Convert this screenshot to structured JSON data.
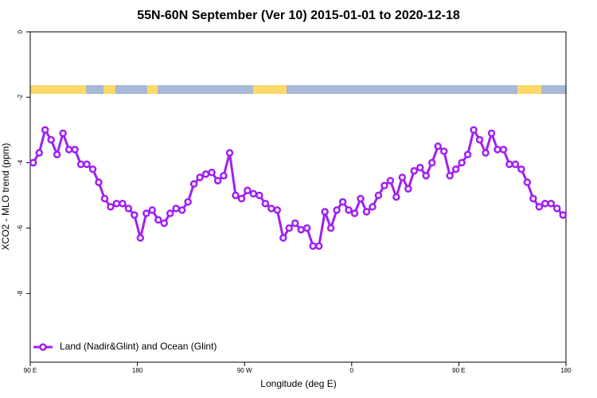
{
  "chart_data": {
    "type": "line",
    "title": "55N-60N September (Ver 10)   2015-01-01 to 2020-12-18",
    "x_label": "Longitude (deg E)",
    "y_label": "XCO2 - MLO trend (ppm)",
    "xlim": [
      90,
      540
    ],
    "ylim": [
      -10.1,
      0
    ],
    "xticks": [
      {
        "value": 90,
        "label": "90 E"
      },
      {
        "value": 180,
        "label": "180"
      },
      {
        "value": 270,
        "label": "90 W"
      },
      {
        "value": 360,
        "label": "0"
      },
      {
        "value": 450,
        "label": "90 E"
      },
      {
        "value": 540,
        "label": "180"
      }
    ],
    "yticks": [
      0,
      -2,
      -4,
      -6,
      -8
    ],
    "legend": "bottomleft",
    "x": [
      92.5,
      97.5,
      102.5,
      107.5,
      112.5,
      117.5,
      122.5,
      127.5,
      132.5,
      137.5,
      142.5,
      147.5,
      152.5,
      157.5,
      162.5,
      167.5,
      172.5,
      177.5,
      182.5,
      187.5,
      192.5,
      197.5,
      202.5,
      207.5,
      212.5,
      217.5,
      222.5,
      227.5,
      232.5,
      237.5,
      242.5,
      247.5,
      252.5,
      257.5,
      262.5,
      267.5,
      272.5,
      277.5,
      282.5,
      287.5,
      292.5,
      297.5,
      302.5,
      307.5,
      312.5,
      317.5,
      322.5,
      327.5,
      332.5,
      337.5,
      342.5,
      347.5,
      352.5,
      357.5,
      362.5,
      367.5,
      372.5,
      377.5,
      382.5,
      387.5,
      392.5,
      397.5,
      402.5,
      407.5,
      412.5,
      417.5,
      422.5,
      427.5,
      432.5,
      437.5,
      442.5,
      447.5,
      452.5,
      457.5,
      462.5,
      467.5,
      472.5,
      477.5,
      482.5,
      487.5,
      492.5,
      497.5,
      502.5,
      507.5,
      512.5,
      517.5,
      522.5,
      527.5,
      532.5,
      537.5
    ],
    "series": [
      {
        "name": "Land (Nadir&Glint) and Ocean (Glint)",
        "color": "#a020f0",
        "values": [
          -4.0,
          -3.7,
          -3.0,
          -3.3,
          -3.75,
          -3.1,
          -3.6,
          -3.6,
          -4.05,
          -4.05,
          -4.2,
          -4.6,
          -5.1,
          -5.35,
          -5.25,
          -5.25,
          -5.4,
          -5.6,
          -6.3,
          -5.55,
          -5.45,
          -5.75,
          -5.85,
          -5.55,
          -5.4,
          -5.45,
          -5.2,
          -4.65,
          -4.45,
          -4.35,
          -4.3,
          -4.55,
          -4.4,
          -3.7,
          -5.0,
          -5.1,
          -4.85,
          -4.95,
          -5.0,
          -5.25,
          -5.4,
          -5.45,
          -6.3,
          -6.0,
          -5.85,
          -6.05,
          -6.0,
          -6.55,
          -6.55,
          -5.5,
          -6.0,
          -5.45,
          -5.2,
          -5.45,
          -5.55,
          -5.1,
          -5.5,
          -5.35,
          -5.0,
          -4.7,
          -4.55,
          -5.05,
          -4.45,
          -4.8,
          -4.25,
          -4.15,
          -4.4,
          -4.0,
          -3.5,
          -3.65,
          -4.4,
          -4.2,
          -4.0,
          -3.75,
          -3.0,
          -3.3,
          -3.7,
          -3.1,
          -3.6,
          -3.6,
          -4.05,
          -4.05,
          -4.2,
          -4.6,
          -5.1,
          -5.35,
          -5.25,
          -5.25,
          -5.4,
          -5.6
        ]
      }
    ]
  }
}
